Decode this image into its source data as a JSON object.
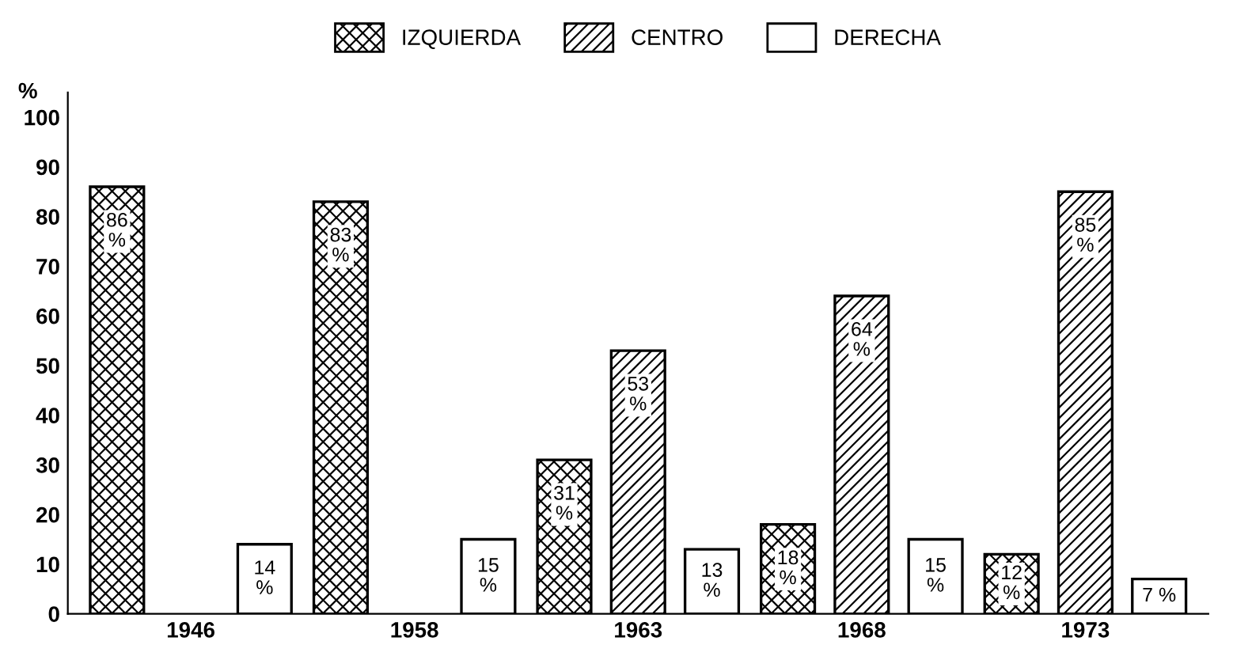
{
  "chart_data": {
    "type": "bar",
    "ylabel": "%",
    "categories": [
      "1946",
      "1958",
      "1963",
      "1968",
      "1973"
    ],
    "series": [
      {
        "name": "IZQUIERDA",
        "color": "#000000",
        "values": [
          86,
          83,
          31,
          18,
          12
        ],
        "value_labels": [
          "86\n%",
          "83\n%",
          "31\n%",
          "18\n%",
          "12\n%"
        ]
      },
      {
        "name": "CENTRO",
        "color": "#000000",
        "values": [
          null,
          null,
          53,
          64,
          85
        ],
        "value_labels": [
          null,
          null,
          "53\n%",
          "64\n%",
          "85\n%"
        ]
      },
      {
        "name": "DERECHA",
        "color": "#ffffff",
        "values": [
          14,
          15,
          13,
          15,
          7
        ],
        "value_labels": [
          "14\n%",
          "15\n%",
          "13\n%",
          "15\n%",
          "7 %"
        ]
      }
    ],
    "ylim": [
      0,
      105
    ],
    "yticks": [
      0,
      10,
      20,
      30,
      40,
      50,
      60,
      70,
      80,
      90,
      100
    ],
    "grid": false,
    "legend": "top"
  }
}
